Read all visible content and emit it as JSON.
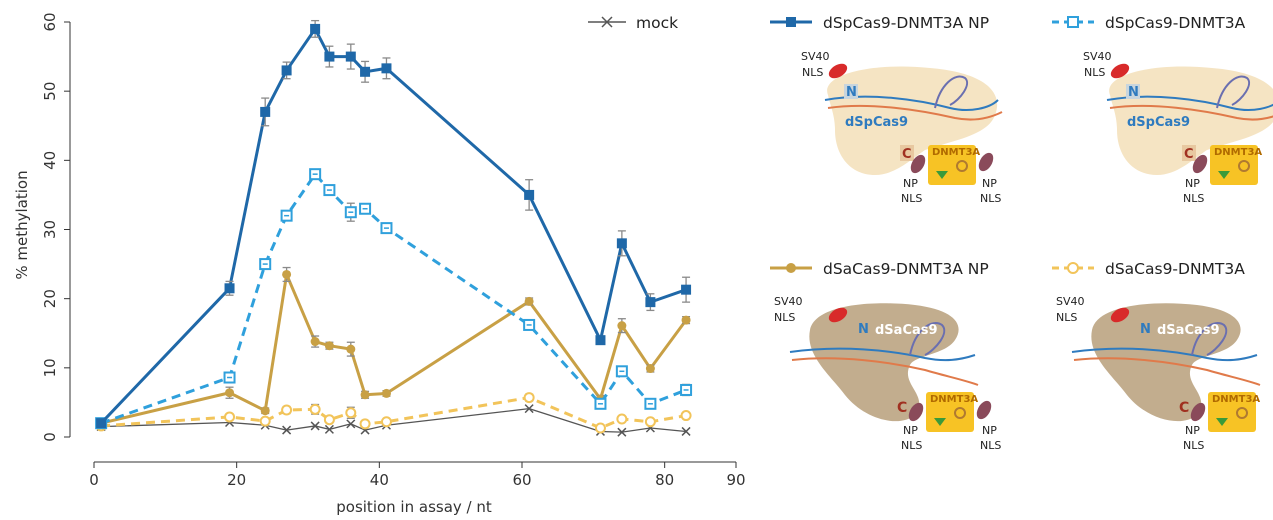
{
  "colors": {
    "sp_np": "#1f68a8",
    "sp": "#2fa0dc",
    "sa_np": "#c8a045",
    "sa": "#f2c45a",
    "mock": "#555555",
    "errorbar": "#8a8a8a"
  },
  "chart_data": {
    "type": "line",
    "xlabel": "position in assay / nt",
    "ylabel": "% methylation",
    "xlim": [
      0,
      90
    ],
    "ylim": [
      0,
      60
    ],
    "xticks": [
      0,
      20,
      40,
      60,
      80,
      90
    ],
    "yticks": [
      0,
      10,
      20,
      30,
      40,
      50,
      60
    ],
    "grid": false,
    "x": [
      1,
      19,
      24,
      27,
      31,
      33,
      36,
      38,
      41,
      61,
      71,
      74,
      78,
      83
    ],
    "series": [
      {
        "name": "dSpCas9-DNMT3A NP",
        "key": "sp_np",
        "marker": "filled-square",
        "dash": "solid",
        "values": [
          2,
          21.5,
          47,
          53,
          59,
          55,
          55,
          52.8,
          53.3,
          35,
          14,
          28,
          19.5,
          21.3
        ],
        "errors": [
          0,
          1,
          2,
          1.2,
          1.2,
          1.5,
          1.8,
          1.5,
          1.5,
          2.2,
          0.6,
          1.8,
          1.2,
          1.8
        ]
      },
      {
        "name": "dSpCas9-DNMT3A",
        "key": "sp",
        "marker": "open-square",
        "dash": "dashed",
        "values": [
          2,
          8.6,
          25,
          32,
          38,
          35.7,
          32.5,
          33,
          30.2,
          16.2,
          4.8,
          9.5,
          4.8,
          6.8
        ],
        "errors": [
          0,
          0.5,
          0.5,
          0.5,
          0.5,
          0.6,
          1.3,
          0.5,
          0.5,
          0.6,
          0.6,
          0.6,
          0.5,
          0.8
        ]
      },
      {
        "name": "dSaCas9-DNMT3A NP",
        "key": "sa_np",
        "marker": "filled-circle",
        "dash": "solid",
        "values": [
          2,
          6.4,
          3.8,
          23.5,
          13.8,
          13.2,
          12.7,
          6.1,
          6.3,
          19.6,
          5.5,
          16.1,
          9.9,
          16.9
        ],
        "errors": [
          0,
          0.8,
          0.4,
          1,
          0.8,
          0.5,
          1,
          0.5,
          0.4,
          0.5,
          0.5,
          1,
          0.5,
          0.5
        ]
      },
      {
        "name": "dSaCas9-DNMT3A",
        "key": "sa",
        "marker": "open-circle",
        "dash": "dashed",
        "values": [
          1.6,
          2.9,
          2.3,
          3.9,
          4,
          2.5,
          3.5,
          1.9,
          2.2,
          5.7,
          1.3,
          2.6,
          2.2,
          3.1
        ],
        "errors": [
          0,
          0.3,
          0.3,
          0.5,
          0.7,
          0.4,
          0.8,
          0.3,
          0.3,
          0.5,
          0.3,
          0.3,
          0.3,
          0.4
        ]
      },
      {
        "name": "mock",
        "key": "mock",
        "marker": "cross",
        "dash": "solid",
        "values": [
          1.5,
          2.1,
          1.7,
          1,
          1.6,
          1.1,
          1.9,
          1,
          1.7,
          4.1,
          0.8,
          0.7,
          1.3,
          0.8
        ],
        "errors": []
      }
    ]
  },
  "legend": {
    "mock": "mock",
    "sp_np": "dSpCas9-DNMT3A NP",
    "sp": "dSpCas9-DNMT3A",
    "sa_np": "dSaCas9-DNMT3A NP",
    "sa": "dSaCas9-DNMT3A"
  },
  "schematics": {
    "sv40_line1": "SV40",
    "nls": "NLS",
    "np": "NP",
    "n_terminal": "N",
    "c_terminal": "C",
    "dnmt3a": "DNMT3A",
    "dspcas9": "dSpCas9",
    "dsacas9": "dSaCas9"
  }
}
